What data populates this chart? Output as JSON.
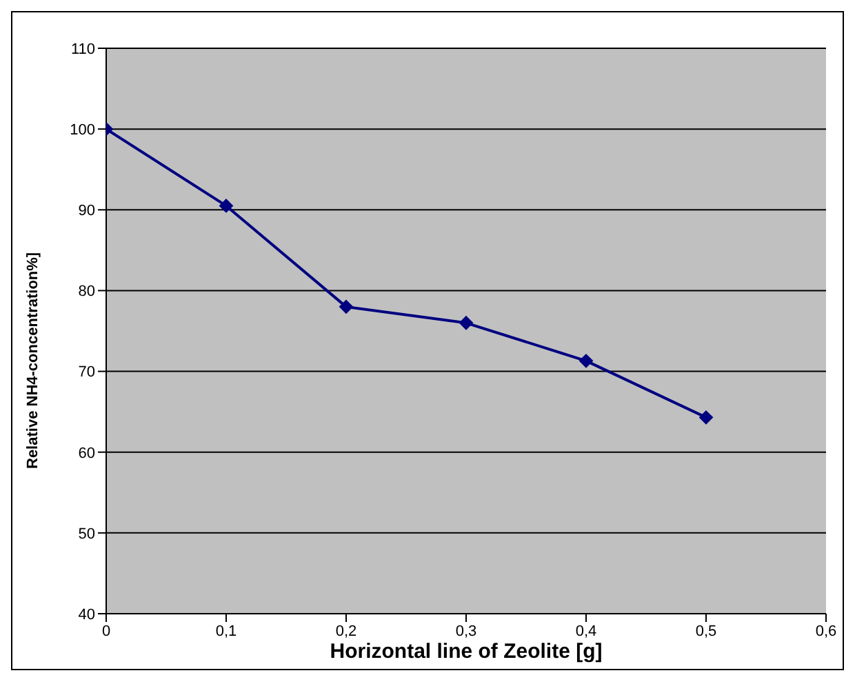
{
  "chart_data": {
    "type": "line",
    "xlabel": "Horizontal line of Zeolite [g]",
    "ylabel": "Relative  NH4-concentration%]",
    "x": [
      0,
      0.1,
      0.2,
      0.3,
      0.4,
      0.5
    ],
    "series": [
      {
        "color": "#000080",
        "values": [
          100,
          90.5,
          78,
          76,
          71.3,
          64.3
        ]
      }
    ],
    "xlim": [
      0,
      0.6
    ],
    "xticks": [
      0,
      {
        "value": 0.1,
        "label": "0,1"
      },
      {
        "value": 0.2,
        "label": "0,2"
      },
      {
        "value": 0.3,
        "label": "0,3"
      },
      {
        "value": 0.4,
        "label": "0,4"
      },
      {
        "value": 0.5,
        "label": "0,5"
      },
      {
        "value": 0.6,
        "label": "0,6"
      }
    ],
    "ylim": [
      40,
      110
    ],
    "yticks": [
      40,
      50,
      60,
      70,
      80,
      90,
      100,
      110
    ],
    "grid": "y",
    "marker": "diamond",
    "line_style": "solid",
    "legend": false
  }
}
